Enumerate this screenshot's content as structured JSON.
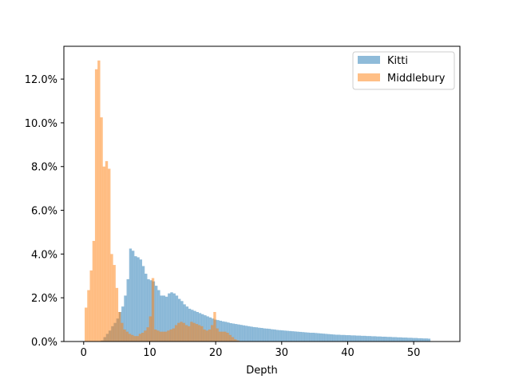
{
  "chart_data": {
    "type": "bar",
    "xlabel": "Depth",
    "ylabel": "",
    "xlim": [
      -3,
      57
    ],
    "ylim": [
      0,
      13.5
    ],
    "x_ticks": [
      0,
      10,
      20,
      30,
      40,
      50
    ],
    "y_ticks": [
      {
        "value": 0,
        "label": "0.0%"
      },
      {
        "value": 2,
        "label": "2.0%"
      },
      {
        "value": 4,
        "label": "4.0%"
      },
      {
        "value": 6,
        "label": "6.0%"
      },
      {
        "value": 8,
        "label": "8.0%"
      },
      {
        "value": 10,
        "label": "10.0%"
      },
      {
        "value": 12,
        "label": "12.0%"
      }
    ],
    "legend_position": "top-right",
    "series": [
      {
        "name": "Kitti",
        "color": "#1f77b4",
        "bin_start": 2.6,
        "bin_width": 0.39,
        "values": [
          0.05,
          0.2,
          0.35,
          0.5,
          0.7,
          0.85,
          1.05,
          1.35,
          1.6,
          2.1,
          2.85,
          4.25,
          4.15,
          3.9,
          3.85,
          3.75,
          3.45,
          3.1,
          2.85,
          2.8,
          2.75,
          2.55,
          2.35,
          2.1,
          2.1,
          2.05,
          2.2,
          2.25,
          2.2,
          2.1,
          1.95,
          1.85,
          1.7,
          1.6,
          1.5,
          1.45,
          1.4,
          1.35,
          1.3,
          1.25,
          1.2,
          1.15,
          1.1,
          1.05,
          1.0,
          0.98,
          0.95,
          0.92,
          0.9,
          0.87,
          0.84,
          0.82,
          0.8,
          0.78,
          0.76,
          0.74,
          0.72,
          0.7,
          0.68,
          0.66,
          0.65,
          0.63,
          0.62,
          0.6,
          0.59,
          0.58,
          0.56,
          0.55,
          0.53,
          0.52,
          0.51,
          0.5,
          0.49,
          0.48,
          0.47,
          0.46,
          0.45,
          0.44,
          0.43,
          0.42,
          0.41,
          0.4,
          0.4,
          0.39,
          0.38,
          0.37,
          0.36,
          0.35,
          0.34,
          0.33,
          0.32,
          0.31,
          0.31,
          0.3,
          0.3,
          0.29,
          0.29,
          0.28,
          0.28,
          0.27,
          0.27,
          0.26,
          0.26,
          0.25,
          0.25,
          0.24,
          0.24,
          0.23,
          0.23,
          0.22,
          0.22,
          0.21,
          0.21,
          0.2,
          0.2,
          0.19,
          0.19,
          0.18,
          0.18,
          0.17,
          0.17,
          0.16,
          0.16,
          0.15,
          0.15,
          0.14,
          0.14,
          0.13
        ]
      },
      {
        "name": "Middlebury",
        "color": "#ff7f0e",
        "bin_start": 0.15,
        "bin_width": 0.39,
        "values": [
          1.55,
          2.35,
          3.25,
          4.6,
          12.45,
          12.85,
          10.25,
          8.0,
          8.25,
          7.9,
          4.0,
          3.5,
          2.45,
          1.35,
          0.85,
          0.55,
          0.45,
          0.35,
          0.3,
          0.25,
          0.25,
          0.35,
          0.4,
          0.5,
          0.65,
          1.15,
          2.9,
          0.55,
          0.5,
          0.45,
          0.45,
          0.45,
          0.5,
          0.55,
          0.6,
          0.75,
          0.85,
          0.9,
          0.85,
          0.75,
          0.7,
          0.9,
          0.85,
          0.8,
          0.75,
          0.7,
          0.55,
          0.5,
          0.55,
          0.75,
          1.35,
          0.6,
          0.45,
          0.45,
          0.45,
          0.4,
          0.3,
          0.2,
          0.1,
          0.05
        ]
      }
    ]
  }
}
